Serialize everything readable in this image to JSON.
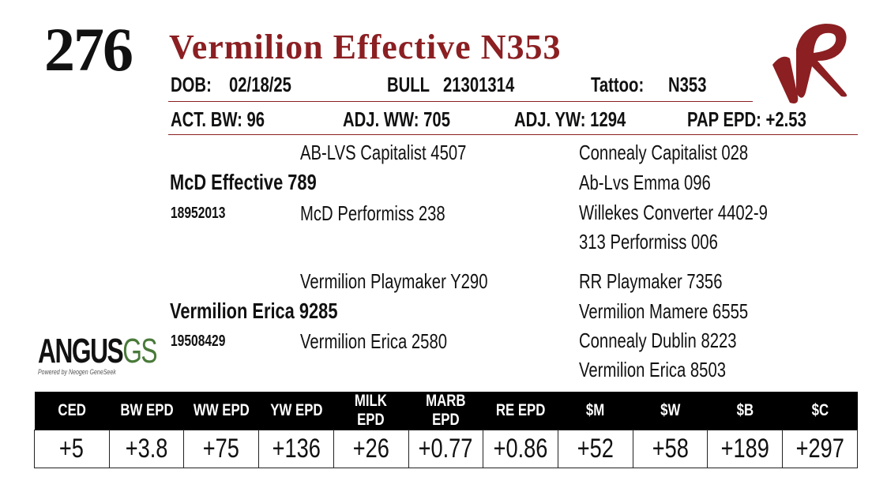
{
  "header": {
    "lot": "276",
    "name": "Vermilion Effective N353",
    "dob_label": "DOB:",
    "dob": "02/18/25",
    "sex": "BULL",
    "registration": "21301314",
    "tattoo_label": "Tattoo:",
    "tattoo": "N353",
    "act_bw": "ACT. BW: 96",
    "adj_ww": "ADJ. WW: 705",
    "adj_yw": "ADJ. YW: 1294",
    "pap_epd": "PAP EPD: +2.53"
  },
  "pedigree": {
    "sire": {
      "name": "McD Effective 789",
      "registration": "18952013",
      "sire": "AB-LVS Capitalist 4507",
      "dam": "McD Performiss 238",
      "sire_sire": "Connealy Capitalist 028",
      "sire_dam": "Ab-Lvs Emma 096",
      "dam_sire": "Willekes Converter 4402-9",
      "dam_dam": "313 Performiss 006"
    },
    "dam": {
      "name": "Vermilion Erica 9285",
      "registration": "19508429",
      "sire": "Vermilion Playmaker Y290",
      "dam": "Vermilion Erica 2580",
      "sire_sire": "RR Playmaker 7356",
      "sire_dam": "Vermilion Mamere 6555",
      "dam_sire": "Connealy Dublin 8223",
      "dam_dam": "Vermilion Erica 8503"
    }
  },
  "logo": {
    "main": "ANGUS",
    "suffix": "GS",
    "tagline": "Powered by Neogen GeneSeek"
  },
  "table": {
    "headers": [
      "CED",
      "BW EPD",
      "WW EPD",
      "YW EPD",
      "MILK EPD",
      "MARB EPD",
      "RE EPD",
      "$M",
      "$W",
      "$B",
      "$C"
    ],
    "rows": [
      [
        "+5",
        "+3.8",
        "+75",
        "+136",
        "+26",
        "+0.77",
        "+0.86",
        "+52",
        "+58",
        "+189",
        "+297"
      ]
    ]
  }
}
